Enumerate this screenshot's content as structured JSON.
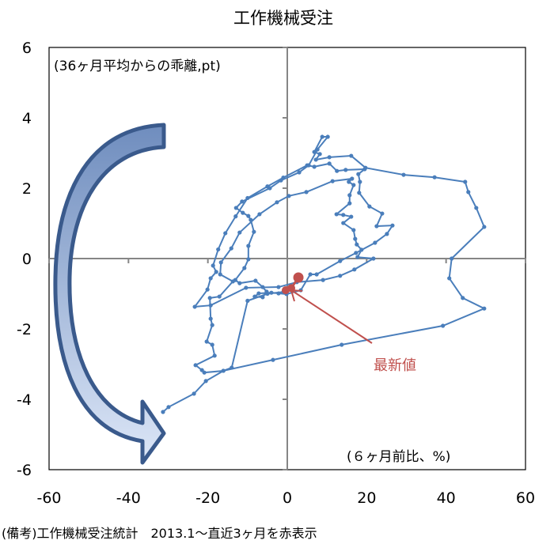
{
  "chart_data": {
    "type": "line",
    "title": "工作機械受注",
    "ylabel": "(36ヶ月平均からの乖離,pt)",
    "xlabel": "(６ヶ月前比、%)",
    "xlim": [
      -60,
      60
    ],
    "ylim": [
      -6,
      6
    ],
    "x_ticks": [
      "-60",
      "-40",
      "-20",
      "0",
      "20",
      "40",
      "60"
    ],
    "x_tick_values": [
      -60,
      -40,
      -20,
      0,
      20,
      40,
      60
    ],
    "y_ticks": [
      "6",
      "4",
      "2",
      "0",
      "-2",
      "-4",
      "-6"
    ],
    "y_tick_values": [
      6,
      4,
      2,
      0,
      -2,
      -4,
      -6
    ],
    "grid": false,
    "annotation": "最新値",
    "footnote": "(備考)工作機械受注統計　2013.1～直近3ヶ月を赤表示",
    "colors": {
      "history": "#4A7EBB",
      "recent": "#C0504D",
      "arrow_stroke": "#3A5A8C"
    },
    "series": [
      {
        "name": "history",
        "points": [
          [
            -31.3,
            -4.36
          ],
          [
            -29.9,
            -4.22
          ],
          [
            -23.5,
            -3.84
          ],
          [
            -20.5,
            -3.48
          ],
          [
            -16.1,
            -3.19
          ],
          [
            -3.6,
            -2.88
          ],
          [
            13.7,
            -2.45
          ],
          [
            39.2,
            -1.91
          ],
          [
            49.6,
            -1.42
          ],
          [
            44.2,
            -1.12
          ],
          [
            40.8,
            -0.56
          ],
          [
            41.4,
            0.0
          ],
          [
            49.6,
            0.9
          ],
          [
            47.6,
            1.44
          ],
          [
            45.6,
            1.89
          ],
          [
            44.8,
            2.18
          ],
          [
            37.1,
            2.31
          ],
          [
            29.3,
            2.38
          ],
          [
            19.7,
            2.58
          ],
          [
            16.1,
            2.92
          ],
          [
            10.6,
            2.88
          ],
          [
            7.2,
            2.81
          ],
          [
            8.2,
            2.97
          ],
          [
            6.8,
            3.03
          ],
          [
            8.8,
            3.46
          ],
          [
            10.2,
            3.46
          ],
          [
            7.6,
            3.1
          ],
          [
            5.4,
            2.65
          ],
          [
            3.0,
            2.45
          ],
          [
            -1.6,
            2.22
          ],
          [
            -4.4,
            2.0
          ],
          [
            -11.4,
            1.62
          ],
          [
            -12.9,
            1.44
          ],
          [
            -11.2,
            1.3
          ],
          [
            -9.8,
            1.21
          ],
          [
            -9.2,
            1.1
          ],
          [
            -8.4,
            0.76
          ],
          [
            -9.8,
            0.36
          ],
          [
            -9.8,
            -0.02
          ],
          [
            -10.8,
            -0.27
          ],
          [
            -13.1,
            -0.61
          ],
          [
            -12.0,
            -0.7
          ],
          [
            -8.0,
            -0.63
          ],
          [
            -6.2,
            -0.81
          ],
          [
            -5.2,
            -0.94
          ],
          [
            -6.2,
            -1.1
          ],
          [
            -8.2,
            -1.08
          ],
          [
            -7.2,
            -0.99
          ],
          [
            -4.0,
            -0.97
          ],
          [
            -2.2,
            -0.99
          ],
          [
            -0.2,
            -1.01
          ],
          [
            3.4,
            -0.9
          ],
          [
            5.8,
            -0.45
          ],
          [
            7.4,
            -0.45
          ],
          [
            13.3,
            -0.07
          ],
          [
            17.3,
            0.16
          ],
          [
            22.1,
            0.45
          ],
          [
            25.1,
            0.7
          ],
          [
            26.5,
            0.94
          ],
          [
            22.5,
            0.92
          ],
          [
            23.9,
            1.28
          ],
          [
            20.7,
            1.48
          ],
          [
            18.1,
            1.87
          ],
          [
            18.3,
            2.18
          ],
          [
            17.9,
            2.4
          ],
          [
            19.5,
            2.54
          ],
          [
            14.7,
            2.52
          ],
          [
            12.5,
            2.49
          ],
          [
            10.6,
            2.7
          ],
          [
            6.8,
            2.61
          ],
          [
            5.0,
            2.65
          ],
          [
            -1.0,
            2.3
          ],
          [
            -5.0,
            2.05
          ],
          [
            -10.0,
            1.72
          ],
          [
            -13.0,
            1.2
          ],
          [
            -15.6,
            0.72
          ],
          [
            -17.4,
            0.26
          ],
          [
            -18.7,
            -0.2
          ],
          [
            -17.9,
            -0.38
          ],
          [
            -19.3,
            -0.56
          ],
          [
            -20.1,
            -0.88
          ],
          [
            -23.3,
            -1.37
          ],
          [
            -19.3,
            -1.33
          ],
          [
            -10.4,
            -0.83
          ],
          [
            -2.2,
            -0.81
          ],
          [
            2.4,
            -0.67
          ],
          [
            9.0,
            -0.61
          ],
          [
            13.3,
            -0.49
          ],
          [
            16.9,
            -0.31
          ],
          [
            21.7,
            0.0
          ],
          [
            17.7,
            0.04
          ],
          [
            18.7,
            0.25
          ],
          [
            17.5,
            0.4
          ],
          [
            17.1,
            0.56
          ],
          [
            16.7,
            0.81
          ],
          [
            14.1,
            1.01
          ],
          [
            16.1,
            1.19
          ],
          [
            14.1,
            1.24
          ],
          [
            12.4,
            1.26
          ],
          [
            15.7,
            1.57
          ],
          [
            15.7,
            1.8
          ],
          [
            16.7,
            2.09
          ],
          [
            15.5,
            2.18
          ],
          [
            16.3,
            2.27
          ],
          [
            11.4,
            2.2
          ],
          [
            4.8,
            1.89
          ],
          [
            0.4,
            1.78
          ],
          [
            -2.6,
            1.6
          ],
          [
            -7.0,
            1.26
          ],
          [
            -12.0,
            0.74
          ],
          [
            -14.1,
            0.29
          ],
          [
            -16.7,
            -0.11
          ],
          [
            -16.9,
            -0.45
          ],
          [
            -13.7,
            -0.65
          ],
          [
            -17.1,
            -1.08
          ],
          [
            -19.5,
            -1.12
          ],
          [
            -19.3,
            -1.71
          ],
          [
            -18.9,
            -1.89
          ],
          [
            -20.3,
            -2.36
          ],
          [
            -18.9,
            -2.45
          ],
          [
            -18.3,
            -2.76
          ],
          [
            -23.1,
            -3.03
          ],
          [
            -21.5,
            -3.17
          ],
          [
            -20.9,
            -3.24
          ],
          [
            -16.1,
            -3.19
          ],
          [
            -14.0,
            -3.1
          ],
          [
            -10.0,
            -1.2
          ],
          [
            -5.0,
            -1.0
          ],
          [
            -1.0,
            -0.95
          ]
        ]
      },
      {
        "name": "recent",
        "points": [
          [
            -0.4,
            -0.9
          ],
          [
            1.0,
            -0.84
          ],
          [
            2.8,
            -0.54
          ]
        ]
      }
    ]
  }
}
